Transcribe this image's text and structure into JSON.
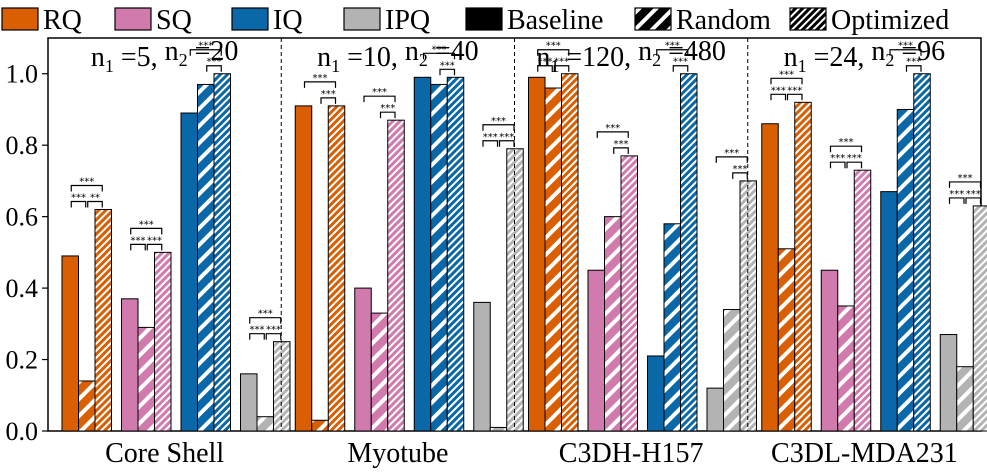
{
  "chart_data": {
    "type": "bar",
    "categories": [
      "Core Shell",
      "Myotube",
      "C3DH-H157",
      "C3DL-MDA231"
    ],
    "panel_titles": [
      {
        "n1": "5",
        "n2": "20"
      },
      {
        "n1": "10",
        "n2": "40"
      },
      {
        "n1": "120",
        "n2": "480"
      },
      {
        "n1": "24",
        "n2": "96"
      }
    ],
    "panel_title_prefix": "n",
    "metrics": [
      {
        "name": "RQ",
        "color": "#d95f02"
      },
      {
        "name": "SQ",
        "color": "#d17aae"
      },
      {
        "name": "IQ",
        "color": "#0a67a8"
      },
      {
        "name": "IPQ",
        "color": "#b3b3b3"
      }
    ],
    "strategies": [
      "Baseline",
      "Random",
      "Optimized"
    ],
    "values": {
      "Core Shell": {
        "RQ": [
          0.49,
          0.14,
          0.62
        ],
        "SQ": [
          0.37,
          0.29,
          0.5
        ],
        "IQ": [
          0.89,
          0.97,
          1.0
        ],
        "IPQ": [
          0.16,
          0.04,
          0.25
        ]
      },
      "Myotube": {
        "RQ": [
          0.91,
          0.03,
          0.91
        ],
        "SQ": [
          0.4,
          0.33,
          0.87
        ],
        "IQ": [
          0.99,
          0.97,
          0.99
        ],
        "IPQ": [
          0.36,
          0.01,
          0.79
        ]
      },
      "C3DH-H157": {
        "RQ": [
          0.99,
          0.96,
          1.0
        ],
        "SQ": [
          0.45,
          0.6,
          0.77
        ],
        "IQ": [
          0.21,
          0.58,
          1.0
        ],
        "IPQ": [
          0.12,
          0.34,
          0.7
        ]
      },
      "C3DL-MDA231": {
        "RQ": [
          0.86,
          0.51,
          0.92
        ],
        "SQ": [
          0.45,
          0.35,
          0.73
        ],
        "IQ": [
          0.67,
          0.9,
          1.0
        ],
        "IPQ": [
          0.27,
          0.18,
          0.63
        ]
      }
    },
    "significance": {
      "Core Shell": {
        "RQ": [
          "**",
          "***",
          "***"
        ],
        "SQ": [
          "***",
          "***",
          "***"
        ],
        "IQ": [
          "***",
          "***"
        ],
        "IPQ": [
          "***",
          "***",
          "***"
        ]
      },
      "Myotube": {
        "RQ": [
          "***",
          "***"
        ],
        "SQ": [
          "***",
          "***"
        ],
        "IQ": [
          "***",
          "***"
        ],
        "IPQ": [
          "***",
          "***",
          "***"
        ]
      },
      "C3DH-H157": {
        "RQ": [
          "***",
          "***",
          "***"
        ],
        "SQ": [
          "***",
          "***"
        ],
        "IQ": [
          "***",
          "***"
        ],
        "IPQ": [
          "***",
          "***"
        ]
      },
      "C3DL-MDA231": {
        "RQ": [
          "***",
          "***",
          "***"
        ],
        "SQ": [
          "***",
          "***",
          "***"
        ],
        "IQ": [
          "***",
          "***"
        ],
        "IPQ": [
          "***",
          "***",
          "***"
        ]
      }
    },
    "ylim": [
      0.0,
      1.1
    ],
    "yticks": [
      "0.0",
      "0.2",
      "0.4",
      "0.6",
      "0.8",
      "1.0"
    ],
    "ytick_values": [
      0.0,
      0.2,
      0.4,
      0.6,
      0.8,
      1.0
    ],
    "xlabel": "",
    "ylabel": "",
    "legend_position": "top"
  }
}
